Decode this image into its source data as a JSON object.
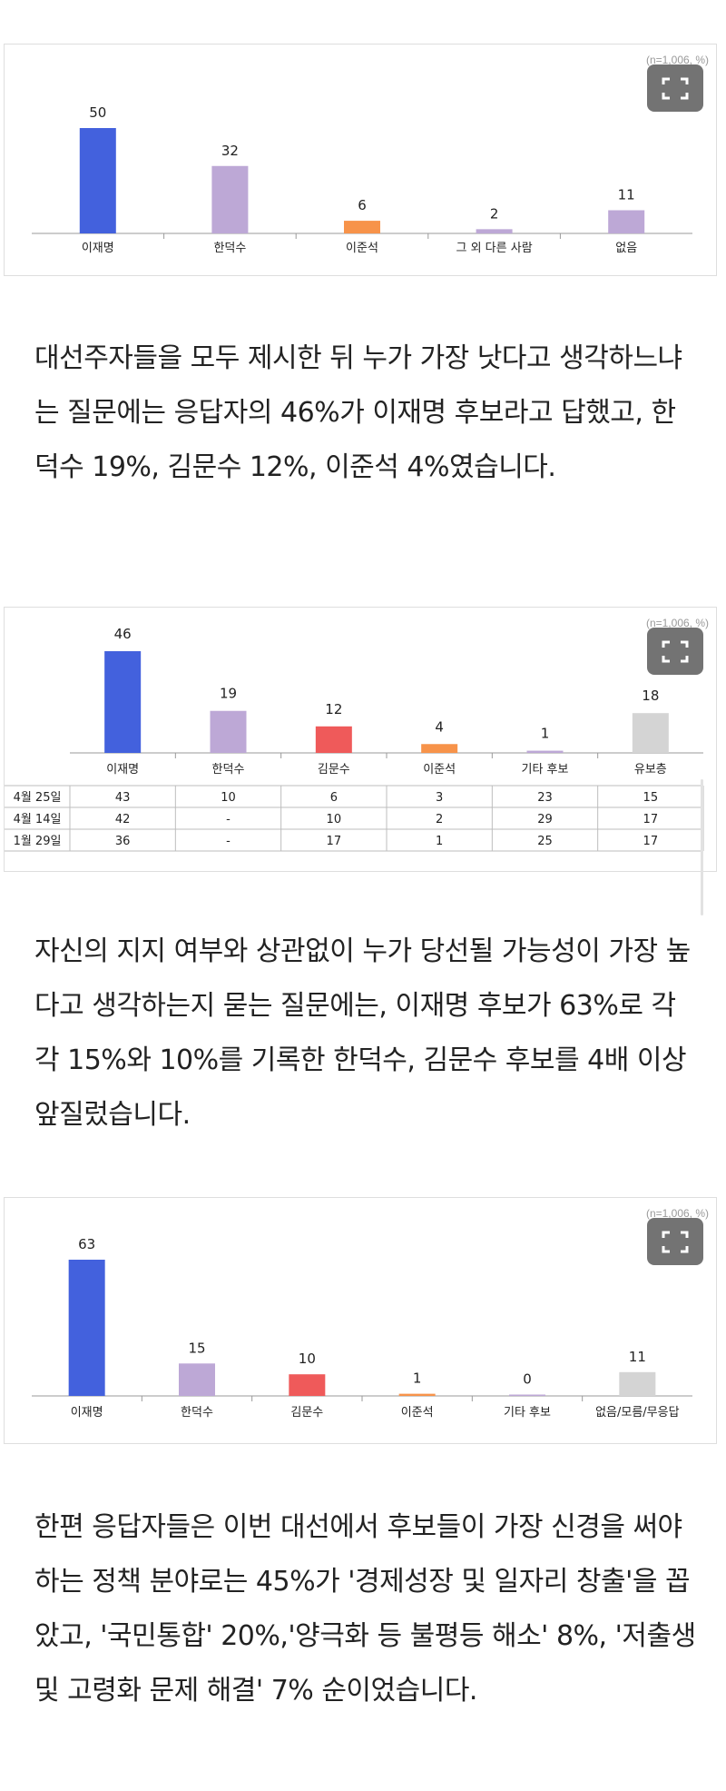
{
  "chart_data": [
    {
      "type": "bar",
      "note": "(n=1,006, %)",
      "categories": [
        "이재명",
        "한덕수",
        "이준석",
        "그 외 다른 사람",
        "없음"
      ],
      "values": [
        50,
        32,
        6,
        2,
        11
      ],
      "colors": [
        "#4361dd",
        "#bda8d6",
        "#f7934a",
        "#bda8d6",
        "#bda8d6"
      ],
      "ylim": [
        0,
        50
      ]
    },
    {
      "type": "bar",
      "note": "(n=1,006, %)",
      "categories": [
        "이재명",
        "한덕수",
        "김문수",
        "이준석",
        "기타 후보",
        "유보층"
      ],
      "values": [
        46,
        19,
        12,
        4,
        1,
        18
      ],
      "colors": [
        "#4361dd",
        "#bda8d6",
        "#ef5a5a",
        "#f7934a",
        "#bda8d6",
        "#d4d4d4"
      ],
      "ylim": [
        0,
        46
      ],
      "table": {
        "rows": [
          {
            "label": "4월 25일",
            "cells": [
              "43",
              "10",
              "6",
              "3",
              "23",
              "15"
            ]
          },
          {
            "label": "4월 14일",
            "cells": [
              "42",
              "-",
              "10",
              "2",
              "29",
              "17"
            ]
          },
          {
            "label": "1월 29일",
            "cells": [
              "36",
              "-",
              "17",
              "1",
              "25",
              "17"
            ]
          }
        ]
      }
    },
    {
      "type": "bar",
      "note": "(n=1,006, %)",
      "categories": [
        "이재명",
        "한덕수",
        "김문수",
        "이준석",
        "기타 후보",
        "없음/모름/무응답"
      ],
      "values": [
        63,
        15,
        10,
        1,
        0,
        11
      ],
      "colors": [
        "#4361dd",
        "#bda8d6",
        "#ef5a5a",
        "#f7934a",
        "#bda8d6",
        "#d4d4d4"
      ],
      "ylim": [
        0,
        63
      ]
    }
  ],
  "paragraphs": {
    "p1": "대선주자들을 모두 제시한 뒤 누가 가장 낫다고 생각하느냐는 질문에는 응답자의 46%가 이재명 후보라고 답했고, 한덕수 19%, 김문수 12%, 이준석 4%였습니다.",
    "p2": "자신의 지지 여부와 상관없이 누가 당선될 가능성이 가장 높다고 생각하는지 묻는 질문에는, 이재명 후보가 63%로 각각 15%와 10%를 기록한 한덕수, 김문수 후보를 4배 이상 앞질렀습니다.",
    "p3": "한편 응답자들은 이번 대선에서 후보들이 가장 신경을 써야하는 정책 분야로는 45%가 '경제성장 및 일자리 창출'을 꼽았고, '국민통합' 20%,'양극화 등 불평등 해소' 8%, '저출생 및 고령화 문제 해결' 7% 순이었습니다."
  },
  "icons": {
    "expand": "expand-icon"
  }
}
